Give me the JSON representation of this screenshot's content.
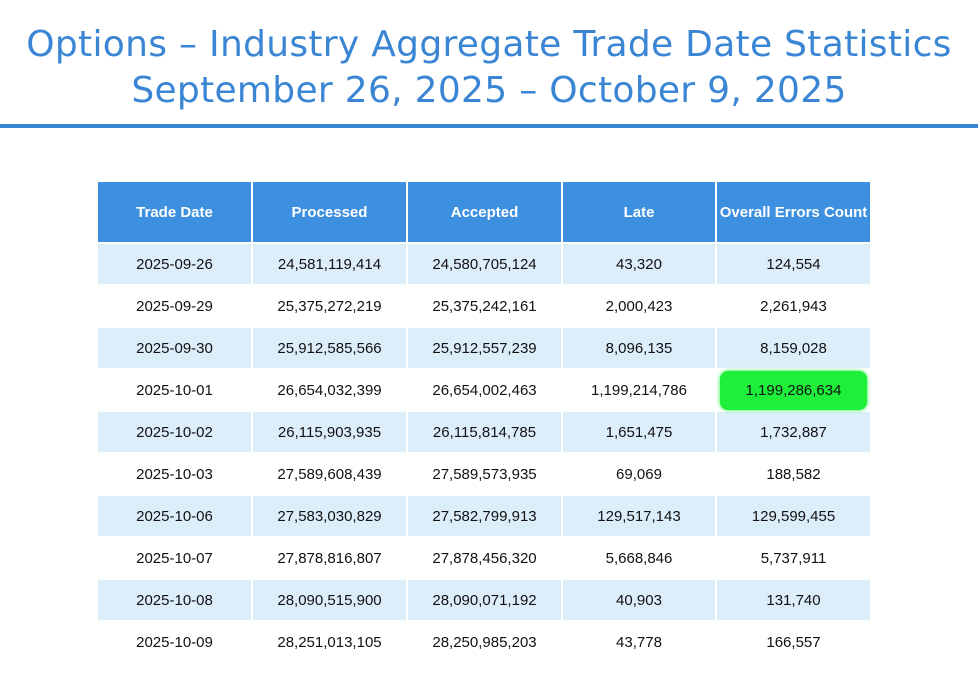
{
  "title": {
    "line1": "Options – Industry Aggregate Trade Date Statistics",
    "line2": "September 26, 2025 – October 9, 2025"
  },
  "table": {
    "headers": [
      "Trade Date",
      "Processed",
      "Accepted",
      "Late",
      "Overall Errors Count"
    ],
    "rows": [
      [
        "2025-09-26",
        "24,581,119,414",
        "24,580,705,124",
        "43,320",
        "124,554"
      ],
      [
        "2025-09-29",
        "25,375,272,219",
        "25,375,242,161",
        "2,000,423",
        "2,261,943"
      ],
      [
        "2025-09-30",
        "25,912,585,566",
        "25,912,557,239",
        "8,096,135",
        "8,159,028"
      ],
      [
        "2025-10-01",
        "26,654,032,399",
        "26,654,002,463",
        "1,199,214,786",
        "1,199,286,634"
      ],
      [
        "2025-10-02",
        "26,115,903,935",
        "26,115,814,785",
        "1,651,475",
        "1,732,887"
      ],
      [
        "2025-10-03",
        "27,589,608,439",
        "27,589,573,935",
        "69,069",
        "188,582"
      ],
      [
        "2025-10-06",
        "27,583,030,829",
        "27,582,799,913",
        "129,517,143",
        "129,599,455"
      ],
      [
        "2025-10-07",
        "27,878,816,807",
        "27,878,456,320",
        "5,668,846",
        "5,737,911"
      ],
      [
        "2025-10-08",
        "28,090,515,900",
        "28,090,071,192",
        "40,903",
        "131,740"
      ],
      [
        "2025-10-09",
        "28,251,013,105",
        "28,250,985,203",
        "43,778",
        "166,557"
      ]
    ],
    "highlighted_row": 3,
    "highlighted_col": 4
  },
  "colors": {
    "title": "#3a86d4",
    "header_bg": "#3d8fdf",
    "row_alt_bg": "#ddeefb",
    "highlight": "#1ef03a"
  }
}
